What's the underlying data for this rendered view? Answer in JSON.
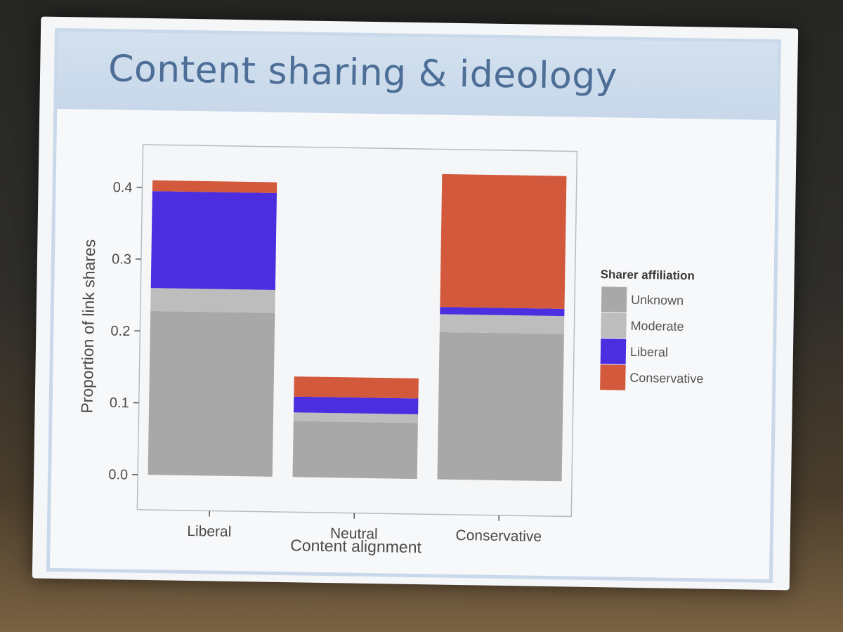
{
  "slide": {
    "title": "Content sharing & ideology"
  },
  "chart_data": {
    "type": "bar",
    "stacked": true,
    "categories": [
      "Liberal",
      "Neutral",
      "Conservative"
    ],
    "series": [
      {
        "name": "Unknown",
        "color": "#a8a8a8",
        "values": [
          0.228,
          0.078,
          0.205
        ]
      },
      {
        "name": "Moderate",
        "color": "#bdbdbd",
        "values": [
          0.032,
          0.012,
          0.025
        ]
      },
      {
        "name": "Liberal",
        "color": "#4b2ee0",
        "values": [
          0.135,
          0.022,
          0.01
        ]
      },
      {
        "name": "Conservative",
        "color": "#d2593c",
        "values": [
          0.015,
          0.028,
          0.185
        ]
      }
    ],
    "xlabel": "Content alignment",
    "ylabel": "Proportion of link shares",
    "ylim": [
      0,
      0.44
    ],
    "yticks": [
      0.0,
      0.1,
      0.2,
      0.3,
      0.4
    ],
    "ytick_labels": [
      "0.0",
      "0.1",
      "0.2",
      "0.3",
      "0.4"
    ],
    "legend": {
      "title": "Sharer affiliation",
      "position": "right",
      "order": [
        "Unknown",
        "Moderate",
        "Liberal",
        "Conservative"
      ]
    }
  }
}
